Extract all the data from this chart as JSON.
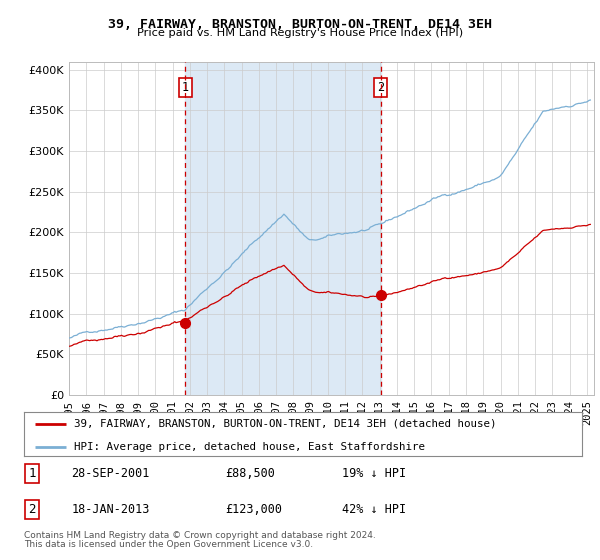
{
  "title1": "39, FAIRWAY, BRANSTON, BURTON-ON-TRENT, DE14 3EH",
  "title2": "Price paid vs. HM Land Registry's House Price Index (HPI)",
  "sale1_date": "28-SEP-2001",
  "sale1_price": 88500,
  "sale2_date": "18-JAN-2013",
  "sale2_price": 123000,
  "sale1_pct": "19% ↓ HPI",
  "sale2_pct": "42% ↓ HPI",
  "legend1": "39, FAIRWAY, BRANSTON, BURTON-ON-TRENT, DE14 3EH (detached house)",
  "legend2": "HPI: Average price, detached house, East Staffordshire",
  "footer": "Contains HM Land Registry data © Crown copyright and database right 2024.\nThis data is licensed under the Open Government Licence v3.0.",
  "hpi_color": "#7bafd4",
  "property_color": "#cc0000",
  "vline_color": "#cc0000",
  "bg_color": "#dce9f5",
  "plot_bg": "#ffffff",
  "ylim_max": 410000,
  "ylim_min": 0
}
